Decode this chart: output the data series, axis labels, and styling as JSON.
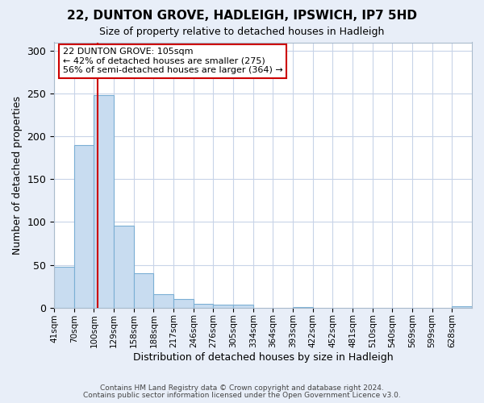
{
  "title": "22, DUNTON GROVE, HADLEIGH, IPSWICH, IP7 5HD",
  "subtitle": "Size of property relative to detached houses in Hadleigh",
  "xlabel": "Distribution of detached houses by size in Hadleigh",
  "ylabel": "Number of detached properties",
  "bin_labels": [
    "41sqm",
    "70sqm",
    "100sqm",
    "129sqm",
    "158sqm",
    "188sqm",
    "217sqm",
    "246sqm",
    "276sqm",
    "305sqm",
    "334sqm",
    "364sqm",
    "393sqm",
    "422sqm",
    "452sqm",
    "481sqm",
    "510sqm",
    "540sqm",
    "569sqm",
    "599sqm",
    "628sqm"
  ],
  "bar_heights": [
    48,
    190,
    248,
    96,
    40,
    16,
    10,
    4,
    3,
    3,
    0,
    0,
    1,
    0,
    0,
    0,
    0,
    0,
    0,
    0,
    2
  ],
  "bar_color": "#c8dcf0",
  "bar_edge_color": "#7bafd4",
  "vline_x": 2,
  "vline_color": "#cc0000",
  "annotation_title": "22 DUNTON GROVE: 105sqm",
  "annotation_line1": "← 42% of detached houses are smaller (275)",
  "annotation_line2": "56% of semi-detached houses are larger (364) →",
  "annotation_box_color": "#ffffff",
  "annotation_box_edge": "#cc0000",
  "footer1": "Contains HM Land Registry data © Crown copyright and database right 2024.",
  "footer2": "Contains public sector information licensed under the Open Government Licence v3.0.",
  "ylim": [
    0,
    310
  ],
  "background_color": "#e8eef8",
  "plot_bg_color": "#ffffff"
}
